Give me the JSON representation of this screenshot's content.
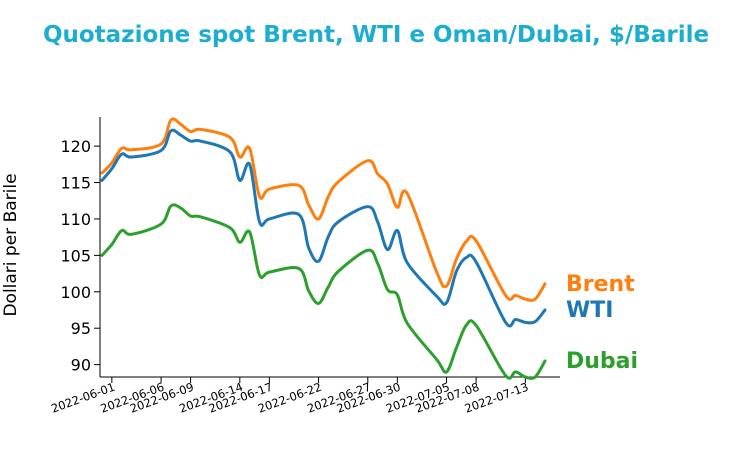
{
  "chart_data": {
    "type": "line",
    "title": "Quotazione spot Brent, WTI e Oman/Dubai, $/Barile",
    "xlabel": "",
    "ylabel": "Dollari per Barile",
    "ylim": [
      88.3,
      124
    ],
    "yticks": [
      90,
      95,
      100,
      105,
      110,
      115,
      120
    ],
    "xticks": [
      "2022-06-01",
      "2022-06-06",
      "2022-06-09",
      "2022-06-14",
      "2022-06-17",
      "2022-06-22",
      "2022-06-27",
      "2022-06-30",
      "2022-07-05",
      "2022-07-08",
      "2022-07-13"
    ],
    "grid": false,
    "legend": "inline labels at right end of each line",
    "x": [
      "2022-05-31",
      "2022-06-01",
      "2022-06-02",
      "2022-06-03",
      "2022-06-06",
      "2022-06-07",
      "2022-06-08",
      "2022-06-09",
      "2022-06-10",
      "2022-06-13",
      "2022-06-14",
      "2022-06-15",
      "2022-06-16",
      "2022-06-17",
      "2022-06-20",
      "2022-06-21",
      "2022-06-22",
      "2022-06-23",
      "2022-06-24",
      "2022-06-27",
      "2022-06-28",
      "2022-06-29",
      "2022-06-30",
      "2022-07-01",
      "2022-07-04",
      "2022-07-05",
      "2022-07-06",
      "2022-07-07",
      "2022-07-08",
      "2022-07-11",
      "2022-07-12",
      "2022-07-13",
      "2022-07-14",
      "2022-07-15"
    ],
    "series": [
      {
        "name": "Brent",
        "color": "#ff7f0e",
        "values": [
          116.3,
          117.7,
          119.7,
          119.5,
          120.3,
          123.6,
          123.0,
          122.0,
          122.3,
          121.2,
          118.5,
          119.7,
          113.1,
          114.1,
          114.6,
          111.9,
          110.0,
          113.1,
          115.1,
          118.0,
          116.2,
          114.8,
          111.6,
          113.5,
          102.7,
          100.8,
          104.5,
          106.9,
          107.0,
          99.5,
          99.5,
          99.0,
          99.0,
          101.1
        ]
      },
      {
        "name": "WTI",
        "color": "#1f77b4",
        "values": [
          115.3,
          116.9,
          118.9,
          118.5,
          119.4,
          122.1,
          121.5,
          120.7,
          120.7,
          119.2,
          115.3,
          117.5,
          109.6,
          110.0,
          110.6,
          106.0,
          104.2,
          107.6,
          109.6,
          111.7,
          109.6,
          105.8,
          108.4,
          104.0,
          99.4,
          98.5,
          102.8,
          104.7,
          104.1,
          95.8,
          96.2,
          95.8,
          95.9,
          97.5
        ]
      },
      {
        "name": "Dubai",
        "color": "#2ca02c",
        "values": [
          105.0,
          106.5,
          108.4,
          107.9,
          109.3,
          111.8,
          111.5,
          110.4,
          110.3,
          108.8,
          106.8,
          108.2,
          102.3,
          102.7,
          103.2,
          100.1,
          98.4,
          100.7,
          102.8,
          105.7,
          103.9,
          100.3,
          99.6,
          95.7,
          90.7,
          89.0,
          92.3,
          95.4,
          95.4,
          88.5,
          89.0,
          88.3,
          88.3,
          90.5
        ]
      }
    ]
  }
}
